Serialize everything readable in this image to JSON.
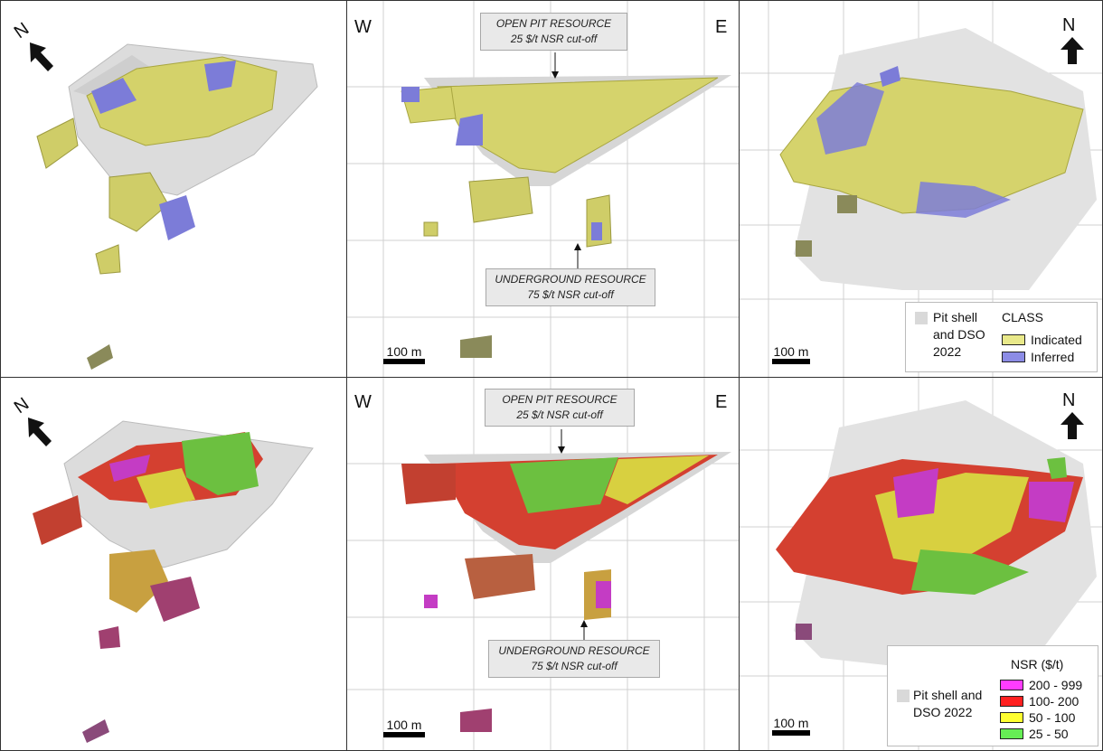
{
  "panels": {
    "top_center": {
      "west": "W",
      "east": "E",
      "open_pit": {
        "line1": "OPEN PIT RESOURCE",
        "line2": "25 $/t NSR cut-off"
      },
      "underground": {
        "line1": "UNDERGROUND RESOURCE",
        "line2": "75 $/t NSR cut-off"
      },
      "scale": "100 m"
    },
    "top_left": {
      "north": "N"
    },
    "top_right": {
      "north": "N",
      "scale": "100 m",
      "legend": {
        "shell_label_1": "Pit shell",
        "shell_label_2": "and DSO",
        "shell_label_3": "2022",
        "title": "CLASS",
        "items": [
          {
            "label": "Indicated",
            "color": "#e9e98a"
          },
          {
            "label": "Inferred",
            "color": "#8c8ce6"
          }
        ]
      }
    },
    "bottom_left": {
      "north": "N"
    },
    "bottom_center": {
      "west": "W",
      "east": "E",
      "open_pit": {
        "line1": "OPEN PIT RESOURCE",
        "line2": "25 $/t NSR cut-off"
      },
      "underground": {
        "line1": "UNDERGROUND RESOURCE",
        "line2": "75 $/t NSR cut-off"
      },
      "scale": "100 m"
    },
    "bottom_right": {
      "north": "N",
      "scale": "100 m",
      "legend": {
        "shell_label_1": "Pit shell and",
        "shell_label_2": "DSO 2022",
        "title": "NSR ($/t)",
        "items": [
          {
            "label": "200 - 999",
            "color": "#ff3cff"
          },
          {
            "label": "100- 200",
            "color": "#ff2020"
          },
          {
            "label": "50 - 100",
            "color": "#ffff30"
          },
          {
            "label": "25 - 50",
            "color": "#66ee55"
          }
        ]
      }
    }
  },
  "colors": {
    "pit_shell": "#d9d9d9",
    "indicated": "#d8d66a",
    "inferred": "#7c7cd8",
    "nsr_high": "#c43cc4",
    "nsr_mid": "#d44030",
    "nsr_low": "#d8d040",
    "nsr_min": "#6cc040"
  }
}
